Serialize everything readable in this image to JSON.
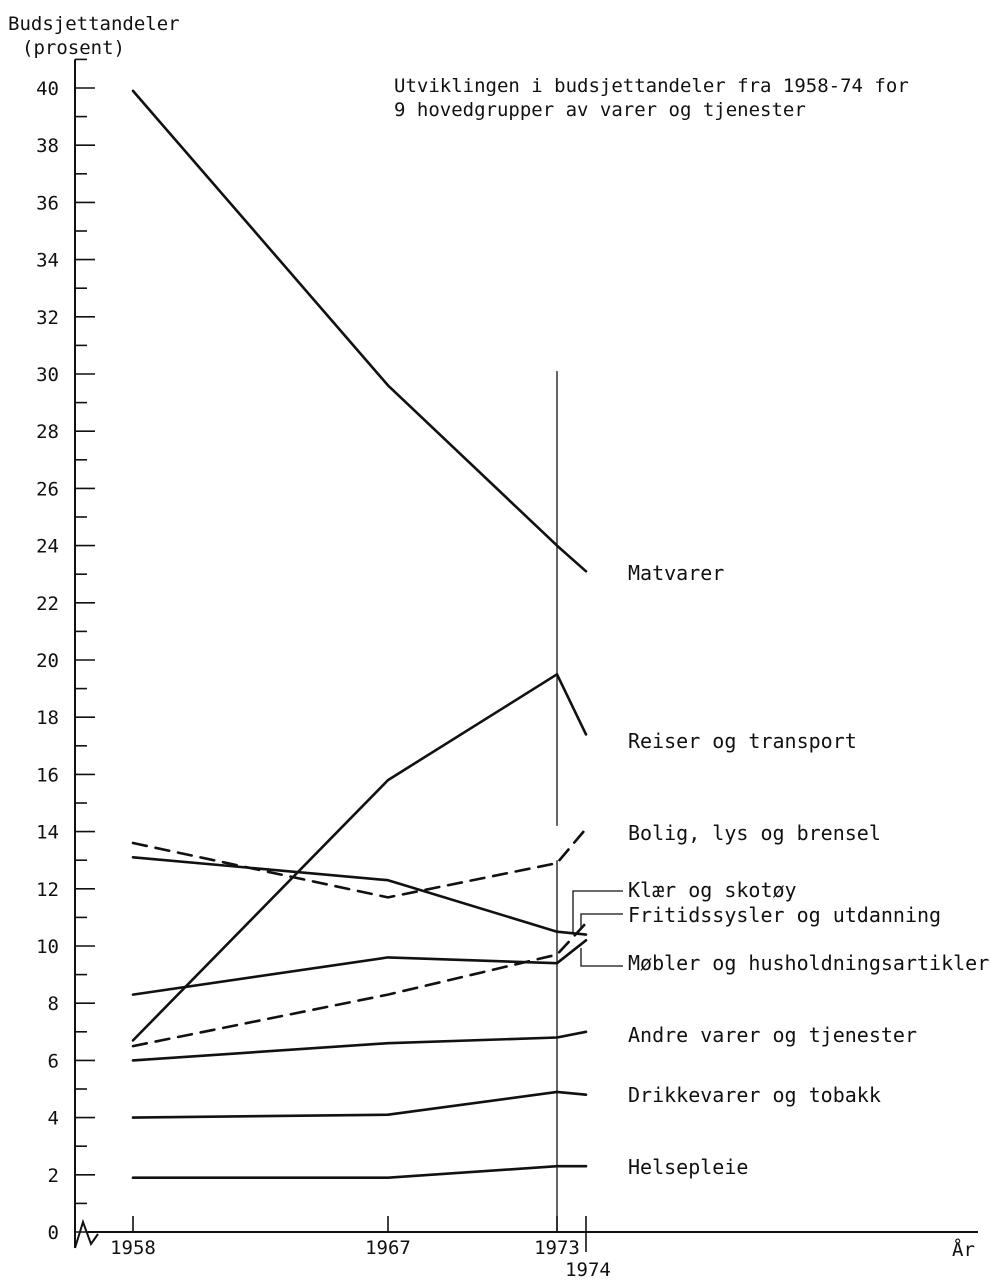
{
  "chart_data": {
    "type": "line",
    "title_lines": [
      "Utviklingen i budsjettandeler fra 1958-74 for",
      "9 hovedgrupper av varer og tjenester"
    ],
    "ylabel_lines": [
      "Budsjettandeler",
      "(prosent)"
    ],
    "xlabel": "År",
    "ylim": [
      0,
      41
    ],
    "y_ticks": [
      0,
      2,
      4,
      6,
      8,
      10,
      12,
      14,
      16,
      18,
      20,
      22,
      24,
      26,
      28,
      30,
      32,
      34,
      36,
      38,
      40
    ],
    "x_ticks": [
      {
        "value": 1958,
        "label": "1958"
      },
      {
        "value": 1967,
        "label": "1967"
      },
      {
        "value": 1973,
        "label": "1973"
      },
      {
        "value": 1974,
        "label": "1974"
      }
    ],
    "reference_line": {
      "x": 1973,
      "y_top": 30.1
    },
    "grid": false,
    "x": [
      1958,
      1967,
      1973,
      1974
    ],
    "series": [
      {
        "name": "Matvarer",
        "values": [
          39.9,
          29.6,
          24.0,
          23.1
        ],
        "dashed": false
      },
      {
        "name": "Reiser og transport",
        "values": [
          6.7,
          15.8,
          19.5,
          17.4
        ],
        "dashed": false
      },
      {
        "name": "Bolig, lys og brensel",
        "values": [
          13.6,
          11.7,
          12.9,
          14.1
        ],
        "dashed": true
      },
      {
        "name": "Klær og skotøy",
        "values": [
          13.1,
          12.3,
          10.5,
          10.4
        ],
        "dashed": false
      },
      {
        "name": "Fritidssysler og utdanning",
        "values": [
          6.5,
          8.3,
          9.7,
          10.8
        ],
        "dashed": true
      },
      {
        "name": "Møbler og husholdningsartikler",
        "values": [
          8.3,
          9.6,
          9.4,
          10.2
        ],
        "dashed": false
      },
      {
        "name": "Andre varer og tjenester",
        "values": [
          6.0,
          6.6,
          6.8,
          7.0
        ],
        "dashed": false
      },
      {
        "name": "Drikkevarer og tobakk",
        "values": [
          4.0,
          4.1,
          4.9,
          4.8
        ],
        "dashed": false
      },
      {
        "name": "Helsepleie",
        "values": [
          1.9,
          1.9,
          2.3,
          2.3
        ],
        "dashed": false
      }
    ]
  }
}
